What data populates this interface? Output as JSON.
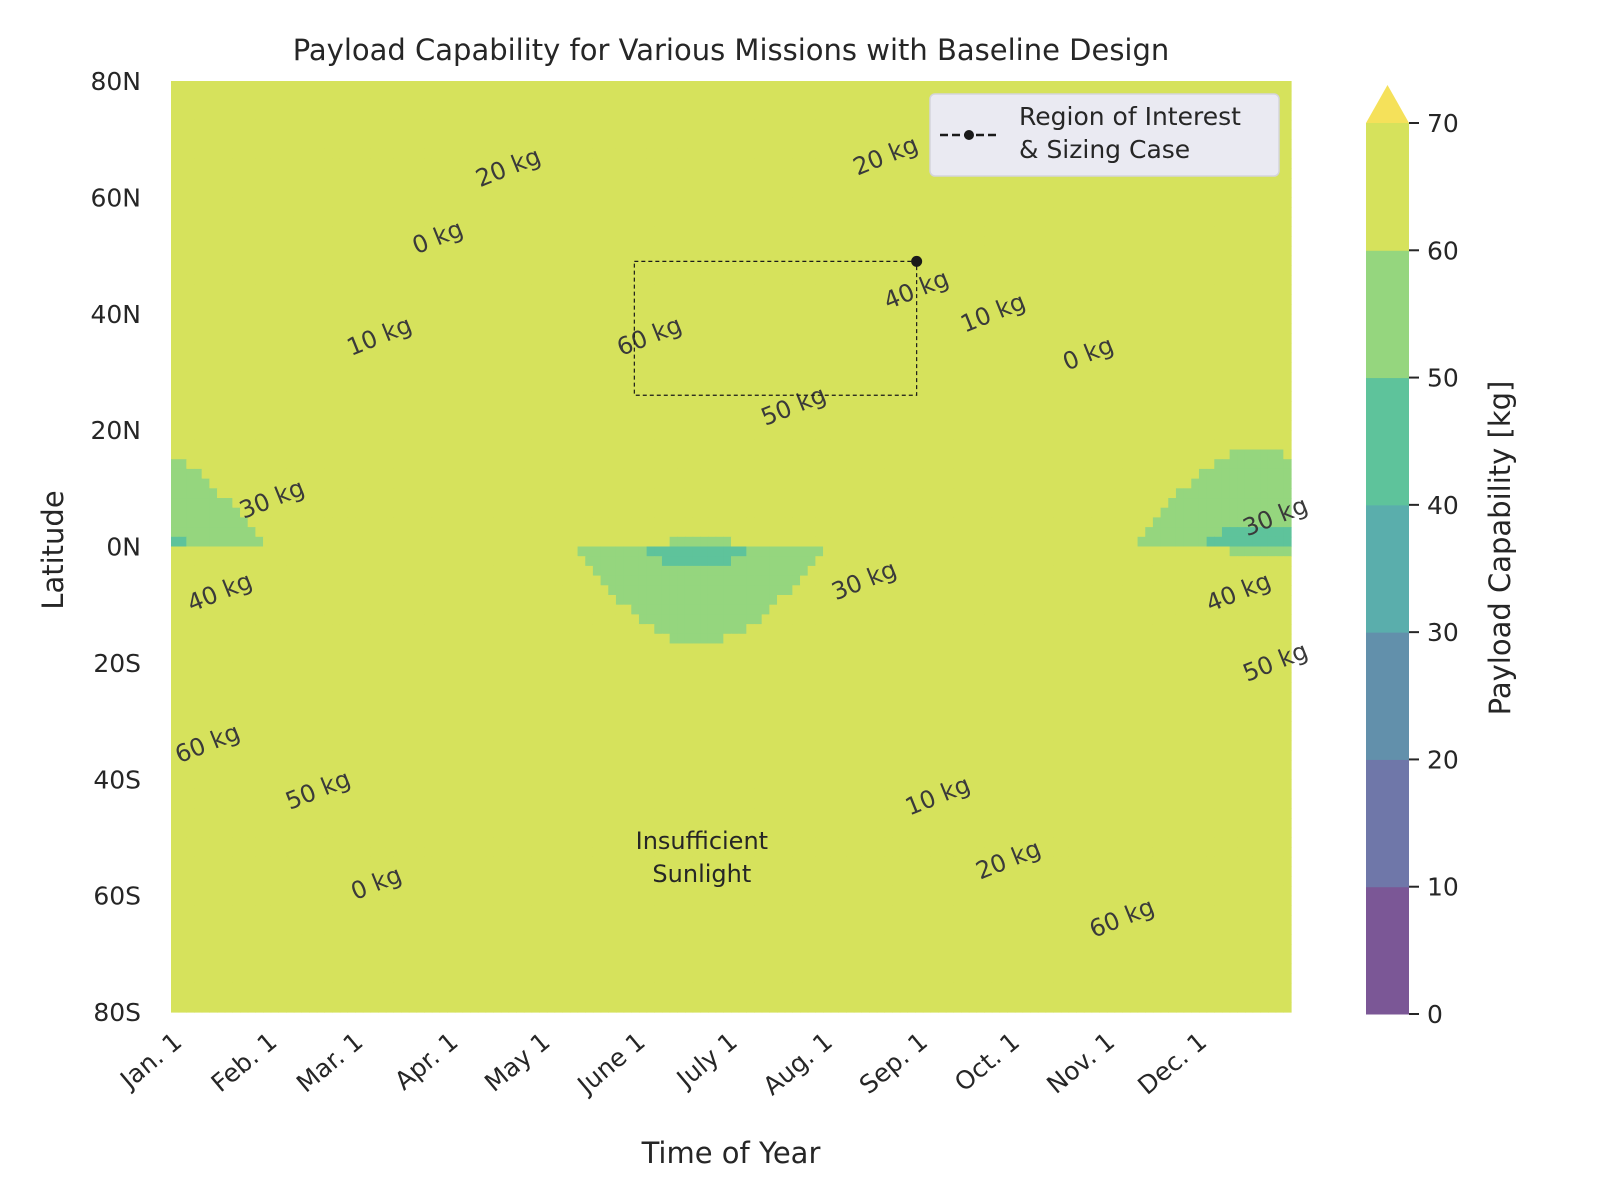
{
  "chart_data": {
    "type": "contourf",
    "title": "Payload Capability for Various Missions with Baseline Design",
    "xlabel": "Time of Year",
    "ylabel": "Latitude",
    "x_tick_labels": [
      "Jan. 1",
      "Feb. 1",
      "Mar. 1",
      "Apr. 1",
      "May 1",
      "June 1",
      "July 1",
      "Aug. 1",
      "Sep. 1",
      "Oct. 1",
      "Nov. 1",
      "Dec. 1"
    ],
    "x_tick_days": [
      0,
      31,
      59,
      90,
      120,
      151,
      181,
      212,
      243,
      273,
      304,
      334
    ],
    "xlim": [
      0,
      365
    ],
    "y_tick_labels": [
      "80N",
      "60N",
      "40N",
      "20N",
      "0N",
      "20S",
      "40S",
      "60S",
      "80S"
    ],
    "y_tick_values": [
      80,
      60,
      40,
      20,
      0,
      -20,
      -40,
      -60,
      -80
    ],
    "ylim": [
      -80,
      80
    ],
    "grid": true,
    "colorbar": {
      "label": "Payload Capability [kg]",
      "levels": [
        0,
        10,
        20,
        30,
        40,
        50,
        60,
        70
      ],
      "tick_labels": [
        "0",
        "10",
        "20",
        "30",
        "40",
        "50",
        "60",
        "70"
      ],
      "extend": "max",
      "colors": [
        "#7b5796",
        "#6f77a9",
        "#6290ab",
        "#5aaeac",
        "#5ec39b",
        "#95d67e",
        "#d6e25c"
      ],
      "over_color": "#f5e15a"
    },
    "contour_labels": [
      {
        "text": "0 kg",
        "day": 87,
        "lat": 53
      },
      {
        "text": "10 kg",
        "day": 68,
        "lat": 36
      },
      {
        "text": "20 kg",
        "day": 110,
        "lat": 65
      },
      {
        "text": "30 kg",
        "day": 33,
        "lat": 8
      },
      {
        "text": "40 kg",
        "day": 16,
        "lat": -8
      },
      {
        "text": "60 kg",
        "day": 156,
        "lat": 36
      },
      {
        "text": "50 kg",
        "day": 203,
        "lat": 24
      },
      {
        "text": "30 kg",
        "day": 226,
        "lat": -6
      },
      {
        "text": "40 kg",
        "day": 348,
        "lat": -8
      },
      {
        "text": "50 kg",
        "day": 360,
        "lat": -20
      },
      {
        "text": "30 kg",
        "day": 360,
        "lat": 5
      },
      {
        "text": "60 kg",
        "day": 12,
        "lat": -34
      },
      {
        "text": "50 kg",
        "day": 48,
        "lat": -42
      },
      {
        "text": "0 kg",
        "day": 67,
        "lat": -58
      },
      {
        "text": "40 kg",
        "day": 243,
        "lat": 44
      },
      {
        "text": "20 kg",
        "day": 233,
        "lat": 67
      },
      {
        "text": "10 kg",
        "day": 268,
        "lat": 40
      },
      {
        "text": "0 kg",
        "day": 299,
        "lat": 33
      },
      {
        "text": "10 kg",
        "day": 250,
        "lat": -43
      },
      {
        "text": "20 kg",
        "day": 273,
        "lat": -54
      },
      {
        "text": "60 kg",
        "day": 310,
        "lat": -64
      }
    ],
    "annotation": {
      "line1": "Insufficient",
      "line2": "Sunlight",
      "day": 173,
      "lat": -52
    },
    "region_of_interest": {
      "day_start": 151,
      "day_end": 243,
      "lat_min": 26,
      "lat_max": 49
    },
    "sizing_case": {
      "day": 243,
      "lat": 49
    },
    "legend": {
      "line1": "Region of Interest",
      "line2": "& Sizing Case",
      "placement": "top-right"
    }
  }
}
